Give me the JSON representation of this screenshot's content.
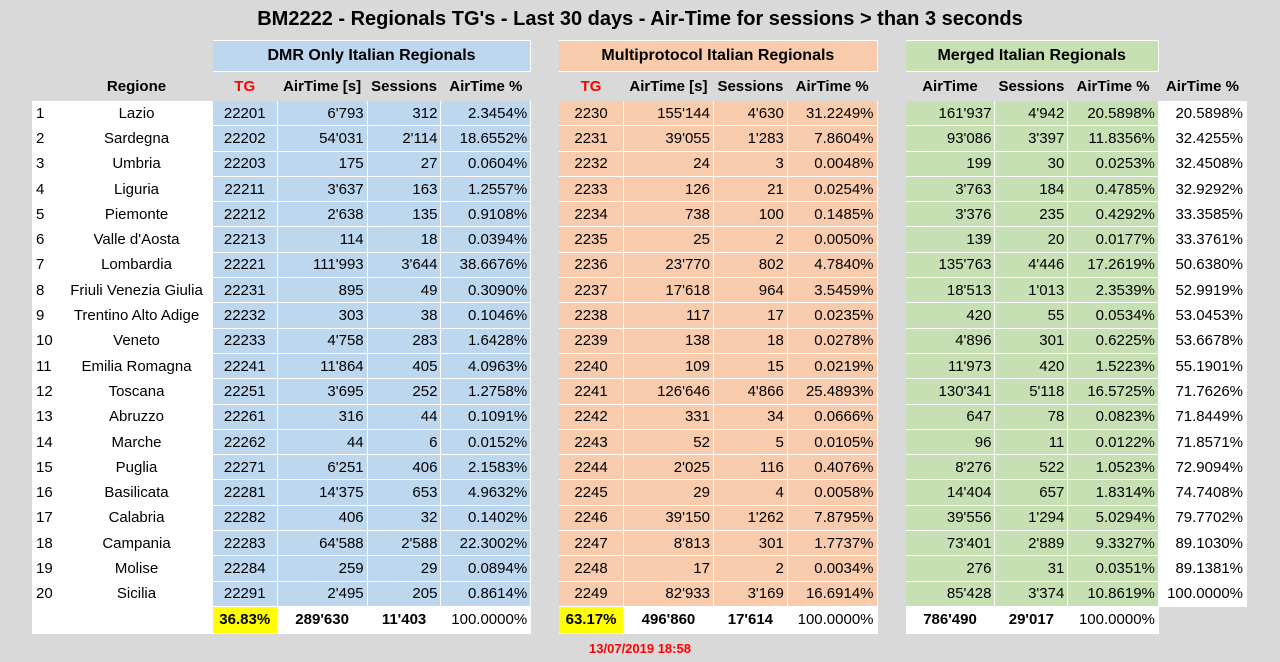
{
  "title": "BM2222 - Regionals TG's - Last 30 days - Air-Time for sessions > than 3 seconds",
  "groups": {
    "dmr": "DMR Only Italian Regionals",
    "multi": "Multiprotocol Italian Regionals",
    "merged": "Merged Italian Regionals"
  },
  "headers": {
    "regione": "Regione",
    "tg": "TG",
    "airtime_s": "AirTime [s]",
    "sessions": "Sessions",
    "airtime_pct": "AirTime %",
    "airtime": "AirTime"
  },
  "rows": [
    {
      "n": "1",
      "region": "Lazio",
      "dmr": [
        "22201",
        "6'793",
        "312",
        "2.3454%"
      ],
      "multi": [
        "2230",
        "155'144",
        "4'630",
        "31.2249%"
      ],
      "merged": [
        "161'937",
        "4'942",
        "20.5898%"
      ],
      "cum": "20.5898%"
    },
    {
      "n": "2",
      "region": "Sardegna",
      "dmr": [
        "22202",
        "54'031",
        "2'114",
        "18.6552%"
      ],
      "multi": [
        "2231",
        "39'055",
        "1'283",
        "7.8604%"
      ],
      "merged": [
        "93'086",
        "3'397",
        "11.8356%"
      ],
      "cum": "32.4255%"
    },
    {
      "n": "3",
      "region": "Umbria",
      "dmr": [
        "22203",
        "175",
        "27",
        "0.0604%"
      ],
      "multi": [
        "2232",
        "24",
        "3",
        "0.0048%"
      ],
      "merged": [
        "199",
        "30",
        "0.0253%"
      ],
      "cum": "32.4508%"
    },
    {
      "n": "4",
      "region": "Liguria",
      "dmr": [
        "22211",
        "3'637",
        "163",
        "1.2557%"
      ],
      "multi": [
        "2233",
        "126",
        "21",
        "0.0254%"
      ],
      "merged": [
        "3'763",
        "184",
        "0.4785%"
      ],
      "cum": "32.9292%"
    },
    {
      "n": "5",
      "region": "Piemonte",
      "dmr": [
        "22212",
        "2'638",
        "135",
        "0.9108%"
      ],
      "multi": [
        "2234",
        "738",
        "100",
        "0.1485%"
      ],
      "merged": [
        "3'376",
        "235",
        "0.4292%"
      ],
      "cum": "33.3585%"
    },
    {
      "n": "6",
      "region": "Valle d'Aosta",
      "dmr": [
        "22213",
        "114",
        "18",
        "0.0394%"
      ],
      "multi": [
        "2235",
        "25",
        "2",
        "0.0050%"
      ],
      "merged": [
        "139",
        "20",
        "0.0177%"
      ],
      "cum": "33.3761%"
    },
    {
      "n": "7",
      "region": "Lombardia",
      "dmr": [
        "22221",
        "111'993",
        "3'644",
        "38.6676%"
      ],
      "multi": [
        "2236",
        "23'770",
        "802",
        "4.7840%"
      ],
      "merged": [
        "135'763",
        "4'446",
        "17.2619%"
      ],
      "cum": "50.6380%"
    },
    {
      "n": "8",
      "region": "Friuli Venezia Giulia",
      "dmr": [
        "22231",
        "895",
        "49",
        "0.3090%"
      ],
      "multi": [
        "2237",
        "17'618",
        "964",
        "3.5459%"
      ],
      "merged": [
        "18'513",
        "1'013",
        "2.3539%"
      ],
      "cum": "52.9919%"
    },
    {
      "n": "9",
      "region": "Trentino Alto Adige",
      "dmr": [
        "22232",
        "303",
        "38",
        "0.1046%"
      ],
      "multi": [
        "2238",
        "117",
        "17",
        "0.0235%"
      ],
      "merged": [
        "420",
        "55",
        "0.0534%"
      ],
      "cum": "53.0453%"
    },
    {
      "n": "10",
      "region": "Veneto",
      "dmr": [
        "22233",
        "4'758",
        "283",
        "1.6428%"
      ],
      "multi": [
        "2239",
        "138",
        "18",
        "0.0278%"
      ],
      "merged": [
        "4'896",
        "301",
        "0.6225%"
      ],
      "cum": "53.6678%"
    },
    {
      "n": "11",
      "region": "Emilia Romagna",
      "dmr": [
        "22241",
        "11'864",
        "405",
        "4.0963%"
      ],
      "multi": [
        "2240",
        "109",
        "15",
        "0.0219%"
      ],
      "merged": [
        "11'973",
        "420",
        "1.5223%"
      ],
      "cum": "55.1901%"
    },
    {
      "n": "12",
      "region": "Toscana",
      "dmr": [
        "22251",
        "3'695",
        "252",
        "1.2758%"
      ],
      "multi": [
        "2241",
        "126'646",
        "4'866",
        "25.4893%"
      ],
      "merged": [
        "130'341",
        "5'118",
        "16.5725%"
      ],
      "cum": "71.7626%"
    },
    {
      "n": "13",
      "region": "Abruzzo",
      "dmr": [
        "22261",
        "316",
        "44",
        "0.1091%"
      ],
      "multi": [
        "2242",
        "331",
        "34",
        "0.0666%"
      ],
      "merged": [
        "647",
        "78",
        "0.0823%"
      ],
      "cum": "71.8449%"
    },
    {
      "n": "14",
      "region": "Marche",
      "dmr": [
        "22262",
        "44",
        "6",
        "0.0152%"
      ],
      "multi": [
        "2243",
        "52",
        "5",
        "0.0105%"
      ],
      "merged": [
        "96",
        "11",
        "0.0122%"
      ],
      "cum": "71.8571%"
    },
    {
      "n": "15",
      "region": "Puglia",
      "dmr": [
        "22271",
        "6'251",
        "406",
        "2.1583%"
      ],
      "multi": [
        "2244",
        "2'025",
        "116",
        "0.4076%"
      ],
      "merged": [
        "8'276",
        "522",
        "1.0523%"
      ],
      "cum": "72.9094%"
    },
    {
      "n": "16",
      "region": "Basilicata",
      "dmr": [
        "22281",
        "14'375",
        "653",
        "4.9632%"
      ],
      "multi": [
        "2245",
        "29",
        "4",
        "0.0058%"
      ],
      "merged": [
        "14'404",
        "657",
        "1.8314%"
      ],
      "cum": "74.7408%"
    },
    {
      "n": "17",
      "region": "Calabria",
      "dmr": [
        "22282",
        "406",
        "32",
        "0.1402%"
      ],
      "multi": [
        "2246",
        "39'150",
        "1'262",
        "7.8795%"
      ],
      "merged": [
        "39'556",
        "1'294",
        "5.0294%"
      ],
      "cum": "79.7702%"
    },
    {
      "n": "18",
      "region": "Campania",
      "dmr": [
        "22283",
        "64'588",
        "2'588",
        "22.3002%"
      ],
      "multi": [
        "2247",
        "8'813",
        "301",
        "1.7737%"
      ],
      "merged": [
        "73'401",
        "2'889",
        "9.3327%"
      ],
      "cum": "89.1030%"
    },
    {
      "n": "19",
      "region": "Molise",
      "dmr": [
        "22284",
        "259",
        "29",
        "0.0894%"
      ],
      "multi": [
        "2248",
        "17",
        "2",
        "0.0034%"
      ],
      "merged": [
        "276",
        "31",
        "0.0351%"
      ],
      "cum": "89.1381%"
    },
    {
      "n": "20",
      "region": "Sicilia",
      "dmr": [
        "22291",
        "2'495",
        "205",
        "0.8614%"
      ],
      "multi": [
        "2249",
        "82'933",
        "3'169",
        "16.6914%"
      ],
      "merged": [
        "85'428",
        "3'374",
        "10.8619%"
      ],
      "cum": "100.0000%"
    }
  ],
  "totals": {
    "dmr": [
      "36.83%",
      "289'630",
      "11'403",
      "100.0000%"
    ],
    "multi": [
      "63.17%",
      "496'860",
      "17'614",
      "100.0000%"
    ],
    "merged": [
      "786'490",
      "29'017",
      "100.0000%"
    ]
  },
  "timestamp": "13/07/2019 18:58",
  "colors": {
    "dmr": "#bdd7ee",
    "multi": "#f8cbad",
    "merged": "#c6e0b4",
    "highlight": "#ffff00",
    "tg_header": "#ff0000"
  }
}
